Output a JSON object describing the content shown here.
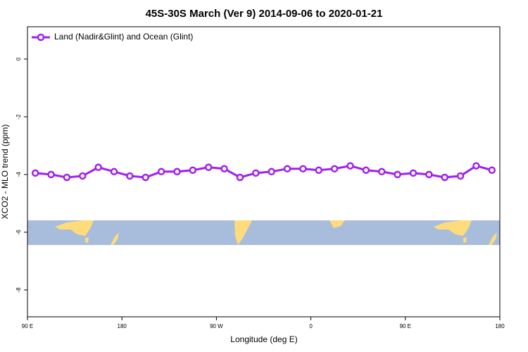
{
  "chart_data": {
    "type": "line",
    "title": "45S-30S March (Ver 9)   2014-09-06 to 2020-01-21",
    "x_label": "Longitude (deg E)",
    "y_label": "XCO2 - MLO trend (ppm)",
    "legend_position": "upper left",
    "xlim": [
      90,
      540
    ],
    "ylim": [
      -8.93,
      1.12
    ],
    "xticks": [
      {
        "value": 90,
        "label": "90 E"
      },
      {
        "value": 180,
        "label": "180"
      },
      {
        "value": 270,
        "label": "90 W"
      },
      {
        "value": 360,
        "label": "0"
      },
      {
        "value": 450,
        "label": "90 E"
      },
      {
        "value": 540,
        "label": "180"
      }
    ],
    "yticks": [
      0,
      -2,
      -4,
      -6,
      -8
    ],
    "x": [
      97.5,
      112.5,
      127.5,
      142.5,
      157.5,
      172.5,
      187.5,
      202.5,
      217.5,
      232.5,
      247.5,
      262.5,
      277.5,
      292.5,
      307.5,
      322.5,
      337.5,
      352.5,
      367.5,
      382.5,
      397.5,
      412.5,
      427.5,
      442.5,
      457.5,
      472.5,
      487.5,
      502.5,
      517.5,
      532.5
    ],
    "series": [
      {
        "name": "Land (Nadir&Glint) and Ocean (Glint)",
        "color": "#a020f0",
        "values": [
          -3.95,
          -4.0,
          -4.1,
          -4.05,
          -3.75,
          -3.9,
          -4.05,
          -4.1,
          -3.9,
          -3.9,
          -3.85,
          -3.75,
          -3.8,
          -4.1,
          -3.95,
          -3.9,
          -3.8,
          -3.8,
          -3.85,
          -3.8,
          -3.7,
          -3.85,
          -3.9,
          -4.0,
          -3.95,
          -4.0,
          -4.1,
          -4.05,
          -3.7,
          -3.85
        ]
      }
    ]
  }
}
